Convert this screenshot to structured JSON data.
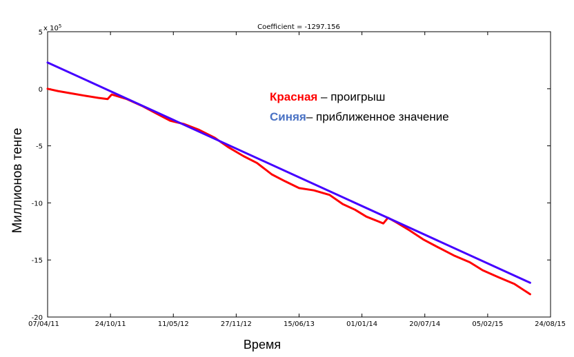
{
  "chart_data": {
    "type": "line",
    "title": "Coefficient = -1297.156",
    "xlabel": "Время",
    "ylabel": "Миллионов тенге",
    "y_multiplier": "x 10^5",
    "y_multiplier_base": "x 10",
    "y_multiplier_exp": "5",
    "x_is_date": true,
    "xlim": [
      "2011-04-07",
      "2015-08-24"
    ],
    "ylim": [
      -20,
      5
    ],
    "x_ticks": [
      {
        "date": "2011-04-07",
        "label": "07/04/11"
      },
      {
        "date": "2011-10-24",
        "label": "24/10/11"
      },
      {
        "date": "2012-05-11",
        "label": "11/05/12"
      },
      {
        "date": "2012-11-27",
        "label": "27/11/12"
      },
      {
        "date": "2013-06-15",
        "label": "15/06/13"
      },
      {
        "date": "2014-01-01",
        "label": "01/01/14"
      },
      {
        "date": "2014-07-20",
        "label": "20/07/14"
      },
      {
        "date": "2015-02-05",
        "label": "05/02/15"
      },
      {
        "date": "2015-08-24",
        "label": "24/08/15"
      }
    ],
    "y_ticks": [
      5,
      0,
      -5,
      -10,
      -15,
      -20
    ],
    "grid": false,
    "series": [
      {
        "color": "#ff0000",
        "points": [
          [
            "2011-04-07",
            0.0
          ],
          [
            "2011-05-10",
            -0.2
          ],
          [
            "2011-06-20",
            -0.4
          ],
          [
            "2011-08-01",
            -0.6
          ],
          [
            "2011-09-15",
            -0.8
          ],
          [
            "2011-10-15",
            -0.9
          ],
          [
            "2011-10-28",
            -0.5
          ],
          [
            "2011-12-15",
            -0.9
          ],
          [
            "2012-02-01",
            -1.5
          ],
          [
            "2012-03-20",
            -2.2
          ],
          [
            "2012-05-01",
            -2.8
          ],
          [
            "2012-06-15",
            -3.1
          ],
          [
            "2012-08-01",
            -3.6
          ],
          [
            "2012-09-20",
            -4.3
          ],
          [
            "2012-11-01",
            -5.1
          ],
          [
            "2012-12-20",
            -5.9
          ],
          [
            "2013-02-01",
            -6.5
          ],
          [
            "2013-03-20",
            -7.5
          ],
          [
            "2013-05-01",
            -8.1
          ],
          [
            "2013-06-15",
            -8.7
          ],
          [
            "2013-08-01",
            -8.9
          ],
          [
            "2013-09-20",
            -9.3
          ],
          [
            "2013-11-01",
            -10.1
          ],
          [
            "2013-12-10",
            -10.6
          ],
          [
            "2014-01-15",
            -11.2
          ],
          [
            "2014-02-20",
            -11.6
          ],
          [
            "2014-03-10",
            -11.8
          ],
          [
            "2014-03-25",
            -11.3
          ],
          [
            "2014-04-20",
            -11.7
          ],
          [
            "2014-06-01",
            -12.4
          ],
          [
            "2014-07-15",
            -13.2
          ],
          [
            "2014-09-01",
            -13.9
          ],
          [
            "2014-10-20",
            -14.6
          ],
          [
            "2014-12-10",
            -15.2
          ],
          [
            "2015-01-20",
            -15.9
          ],
          [
            "2015-03-10",
            -16.5
          ],
          [
            "2015-05-01",
            -17.1
          ],
          [
            "2015-06-20",
            -18.0
          ]
        ]
      },
      {
        "color": "#4400ff",
        "points": [
          [
            "2011-04-07",
            2.3
          ],
          [
            "2015-06-20",
            -17.0
          ]
        ]
      }
    ],
    "annotations": [
      {
        "colored": "Красная",
        "color": "#ff0000",
        "rest": " – проигрыш"
      },
      {
        "colored": "Синяя",
        "color": "#4a72c4",
        "rest": "– приближенное значение"
      }
    ]
  }
}
